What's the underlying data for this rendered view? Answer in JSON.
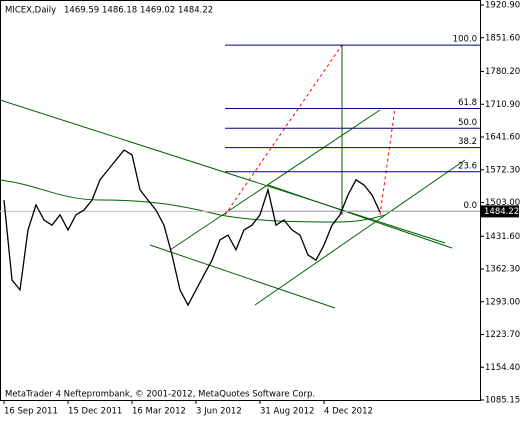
{
  "chart_data": {
    "type": "line",
    "symbol": "MICEX,Daily",
    "ohlc": [
      1469.59,
      1486.18,
      1469.02,
      1484.22
    ],
    "last_price": {
      "value": 1484.22,
      "label": "1484.22"
    },
    "footer": "MetaTrader 4 Nefteprombank, © 2001-2012, MetaQuotes Software Corp.",
    "categories": [
      "16 Sep 2011",
      null,
      null,
      null,
      null,
      null,
      null,
      null,
      "15 Dec 2011",
      null,
      null,
      null,
      null,
      null,
      null,
      null,
      "16 Mar 2012",
      null,
      null,
      null,
      null,
      null,
      null,
      null,
      "3 Jun 2012",
      null,
      null,
      null,
      null,
      null,
      null,
      null,
      "31 Aug 2012",
      null,
      null,
      null,
      null,
      null,
      null,
      null,
      "4 Dec 2012",
      null,
      null,
      null,
      null,
      null,
      null,
      null
    ],
    "values": [
      1508,
      1339,
      1318,
      1445,
      1498,
      1466,
      1455,
      1477,
      1445,
      1477,
      1487,
      1508,
      1551,
      1572,
      1593,
      1614,
      1604,
      1530,
      1508,
      1487,
      1455,
      1392,
      1318,
      1286,
      1318,
      1350,
      1381,
      1424,
      1434,
      1403,
      1445,
      1455,
      1477,
      1530,
      1455,
      1466,
      1445,
      1434,
      1392,
      1381,
      1413,
      1455,
      1477,
      1519,
      1551,
      1540,
      1519,
      1483
    ],
    "color": "#000000",
    "fibonacci": {
      "levels": [
        {
          "value": 100,
          "label": "100.0"
        },
        61.8,
        {
          "value": 50,
          "label": "50.0"
        },
        38.2,
        23.6,
        {
          "value": 0,
          "label": "0.0"
        }
      ],
      "prices": [
        1836,
        1702,
        1660,
        1619,
        1568,
        1484.22
      ],
      "color": "#000080"
    },
    "ylim": [
      1085.15,
      1920.9
    ],
    "yticks": [
      {
        "value": 1920.9,
        "label": "1920.90"
      },
      {
        "value": 1851.6,
        "label": "1851.60"
      },
      {
        "value": 1780.2,
        "label": "1780.20"
      },
      {
        "value": 1710.9,
        "label": "1710.90"
      },
      {
        "value": 1641.6,
        "label": "1641.60"
      },
      {
        "value": 1572.3,
        "label": "1572.30"
      },
      {
        "value": 1503,
        "label": "1503.00"
      },
      {
        "value": 1431.6,
        "label": "1431.60"
      },
      {
        "value": 1362.3,
        "label": "1362.30"
      },
      {
        "value": 1293,
        "label": "1293.00"
      },
      {
        "value": 1223.7,
        "label": "1223.70"
      },
      {
        "value": 1154.4,
        "label": "1154.40"
      },
      {
        "value": 1085.15,
        "label": "1085.15"
      }
    ]
  }
}
